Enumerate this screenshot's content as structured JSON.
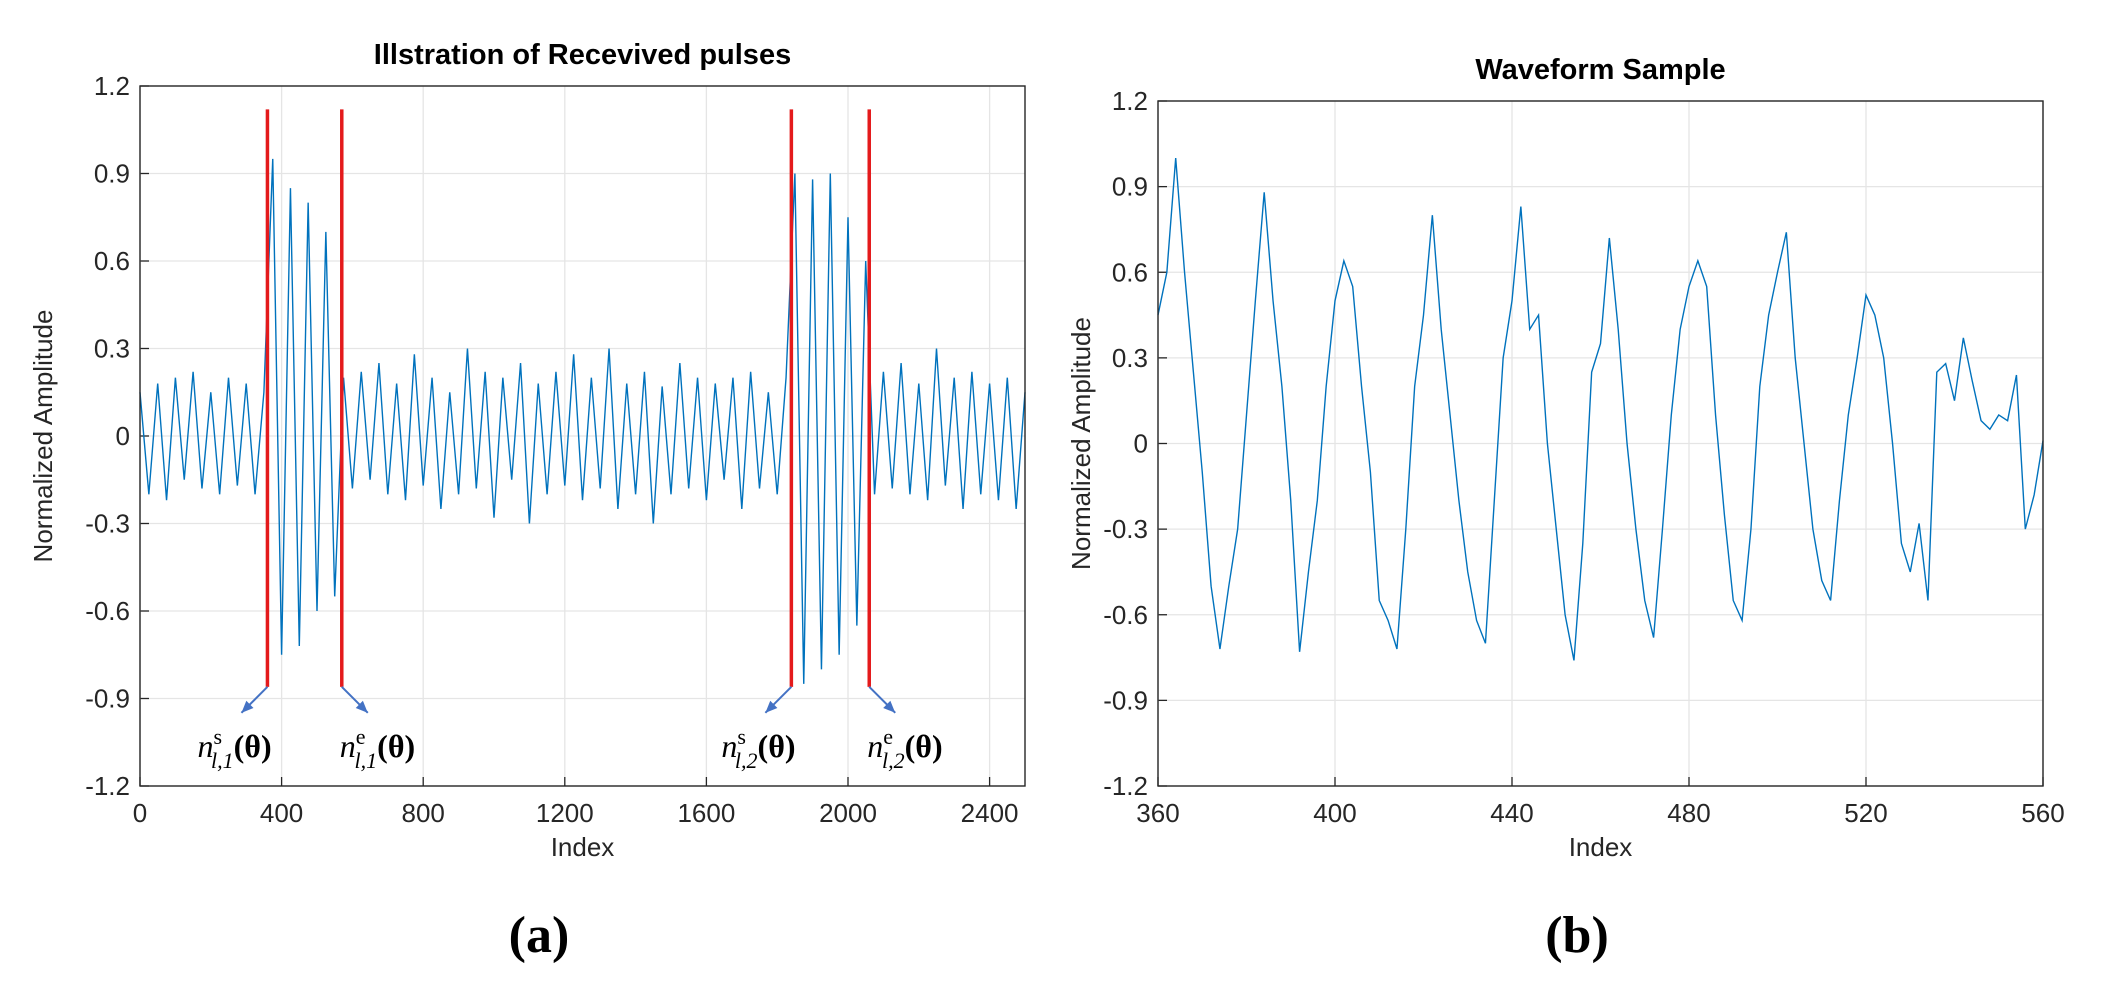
{
  "chart_data": [
    {
      "type": "line",
      "title": "Illstration of Recevived pulses",
      "caption": "(a)",
      "x_label": "Index",
      "y_label": "Normalized Amplitude",
      "xlim": [
        0,
        2500
      ],
      "xticks": [
        0,
        400,
        800,
        1200,
        1600,
        2000,
        2400
      ],
      "ylim": [
        -1.2,
        1.2
      ],
      "yticks": [
        -1.2,
        -0.9,
        -0.6,
        -0.3,
        0,
        0.3,
        0.6,
        0.9,
        1.2
      ],
      "grid": true,
      "series": [
        {
          "color": "#0072bd",
          "x": [
            0,
            25,
            50,
            75,
            100,
            125,
            150,
            175,
            200,
            225,
            250,
            275,
            300,
            325,
            350,
            375,
            400,
            425,
            450,
            475,
            500,
            525,
            550,
            575,
            600,
            625,
            650,
            675,
            700,
            725,
            750,
            775,
            800,
            825,
            850,
            875,
            900,
            925,
            950,
            975,
            1000,
            1025,
            1050,
            1075,
            1100,
            1125,
            1150,
            1175,
            1200,
            1225,
            1250,
            1275,
            1300,
            1325,
            1350,
            1375,
            1400,
            1425,
            1450,
            1475,
            1500,
            1525,
            1550,
            1575,
            1600,
            1625,
            1650,
            1675,
            1700,
            1725,
            1750,
            1775,
            1800,
            1825,
            1850,
            1875,
            1900,
            1925,
            1950,
            1975,
            2000,
            2025,
            2050,
            2075,
            2100,
            2125,
            2150,
            2175,
            2200,
            2225,
            2250,
            2275,
            2300,
            2325,
            2350,
            2375,
            2400,
            2425,
            2450,
            2475,
            2500
          ],
          "values": [
            0.15,
            -0.2,
            0.18,
            -0.22,
            0.2,
            -0.15,
            0.22,
            -0.18,
            0.15,
            -0.2,
            0.2,
            -0.17,
            0.18,
            -0.2,
            0.15,
            0.95,
            -0.75,
            0.85,
            -0.72,
            0.8,
            -0.6,
            0.7,
            -0.55,
            0.2,
            -0.18,
            0.22,
            -0.15,
            0.25,
            -0.2,
            0.18,
            -0.22,
            0.28,
            -0.17,
            0.2,
            -0.25,
            0.15,
            -0.2,
            0.3,
            -0.18,
            0.22,
            -0.28,
            0.2,
            -0.15,
            0.25,
            -0.3,
            0.18,
            -0.2,
            0.22,
            -0.17,
            0.28,
            -0.22,
            0.2,
            -0.18,
            0.3,
            -0.25,
            0.18,
            -0.2,
            0.22,
            -0.3,
            0.17,
            -0.2,
            0.25,
            -0.18,
            0.2,
            -0.22,
            0.18,
            -0.15,
            0.2,
            -0.25,
            0.22,
            -0.18,
            0.15,
            -0.2,
            0.2,
            0.9,
            -0.85,
            0.88,
            -0.8,
            0.9,
            -0.75,
            0.75,
            -0.65,
            0.6,
            -0.2,
            0.22,
            -0.18,
            0.25,
            -0.2,
            0.18,
            -0.22,
            0.3,
            -0.17,
            0.2,
            -0.25,
            0.22,
            -0.2,
            0.18,
            -0.22,
            0.2,
            -0.25,
            0.15
          ]
        }
      ],
      "markers": [
        {
          "x": 360,
          "y_range": [
            -0.86,
            1.12
          ],
          "color": "#e41a1c",
          "label": {
            "base": "n",
            "sup": "s",
            "sub": "l,1",
            "arg": "(θ)"
          }
        },
        {
          "x": 570,
          "y_range": [
            -0.86,
            1.12
          ],
          "color": "#e41a1c",
          "label": {
            "base": "n",
            "sup": "e",
            "sub": "l,1",
            "arg": "(θ)"
          }
        },
        {
          "x": 1840,
          "y_range": [
            -0.86,
            1.12
          ],
          "color": "#e41a1c",
          "label": {
            "base": "n",
            "sup": "s",
            "sub": "l,2",
            "arg": "(θ)"
          }
        },
        {
          "x": 2060,
          "y_range": [
            -0.86,
            1.12
          ],
          "color": "#e41a1c",
          "label": {
            "base": "n",
            "sup": "e",
            "sub": "l,2",
            "arg": "(θ)"
          }
        }
      ]
    },
    {
      "type": "line",
      "title": "Waveform Sample",
      "caption": "(b)",
      "x_label": "Index",
      "y_label": "Normalized Amplitude",
      "xlim": [
        360,
        560
      ],
      "xticks": [
        360,
        400,
        440,
        480,
        520,
        560
      ],
      "ylim": [
        -1.2,
        1.2
      ],
      "yticks": [
        -1.2,
        -0.9,
        -0.6,
        -0.3,
        0,
        0.3,
        0.6,
        0.9,
        1.2
      ],
      "grid": true,
      "series": [
        {
          "color": "#0072bd",
          "x": [
            360,
            362,
            364,
            366,
            368,
            370,
            372,
            374,
            376,
            378,
            380,
            382,
            384,
            386,
            388,
            390,
            392,
            394,
            396,
            398,
            400,
            402,
            404,
            406,
            408,
            410,
            412,
            414,
            416,
            418,
            420,
            422,
            424,
            426,
            428,
            430,
            432,
            434,
            436,
            438,
            440,
            442,
            444,
            446,
            448,
            450,
            452,
            454,
            456,
            458,
            460,
            462,
            464,
            466,
            468,
            470,
            472,
            474,
            476,
            478,
            480,
            482,
            484,
            486,
            488,
            490,
            492,
            494,
            496,
            498,
            500,
            502,
            504,
            506,
            508,
            510,
            512,
            514,
            516,
            518,
            520,
            522,
            524,
            526,
            528,
            530,
            532,
            534,
            536,
            538,
            540,
            542,
            544,
            546,
            548,
            550,
            552,
            554,
            556,
            558,
            560
          ],
          "values": [
            0.45,
            0.6,
            1.0,
            0.6,
            0.25,
            -0.1,
            -0.5,
            -0.72,
            -0.5,
            -0.3,
            0.1,
            0.5,
            0.88,
            0.5,
            0.2,
            -0.2,
            -0.73,
            -0.45,
            -0.2,
            0.2,
            0.5,
            0.64,
            0.55,
            0.2,
            -0.1,
            -0.55,
            -0.62,
            -0.72,
            -0.3,
            0.2,
            0.45,
            0.8,
            0.4,
            0.1,
            -0.2,
            -0.45,
            -0.62,
            -0.7,
            -0.2,
            0.3,
            0.5,
            0.83,
            0.4,
            0.45,
            0.0,
            -0.3,
            -0.6,
            -0.76,
            -0.35,
            0.25,
            0.35,
            0.72,
            0.4,
            0.0,
            -0.3,
            -0.55,
            -0.68,
            -0.3,
            0.1,
            0.4,
            0.55,
            0.64,
            0.55,
            0.1,
            -0.25,
            -0.55,
            -0.62,
            -0.3,
            0.2,
            0.45,
            0.6,
            0.74,
            0.3,
            0.0,
            -0.3,
            -0.48,
            -0.55,
            -0.2,
            0.1,
            0.3,
            0.52,
            0.45,
            0.3,
            0.0,
            -0.35,
            -0.45,
            -0.28,
            -0.55,
            0.25,
            0.28,
            0.15,
            0.37,
            0.22,
            0.08,
            0.05,
            0.1,
            0.08,
            0.24,
            -0.3,
            -0.18,
            0.01
          ]
        }
      ]
    }
  ]
}
